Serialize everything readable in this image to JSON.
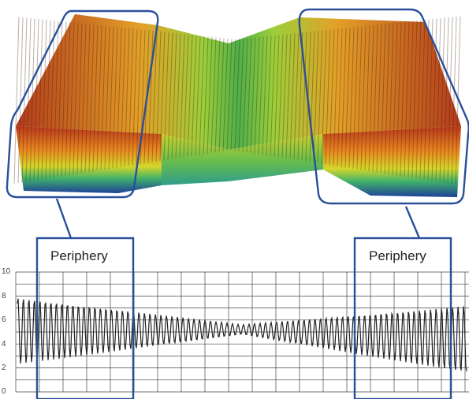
{
  "callouts": {
    "left_label": "Periphery",
    "right_label": "Periphery"
  },
  "profile_plot": {
    "y_ticks": [
      "10",
      "8",
      "6",
      "4",
      "2",
      "0"
    ]
  },
  "colors": {
    "callout_border": "#2a4f9a",
    "surface_high": "#c0401a",
    "surface_mid": "#8cc63e",
    "surface_low": "#1f4fa0",
    "trace": "#222222",
    "grid": "#444444"
  }
}
